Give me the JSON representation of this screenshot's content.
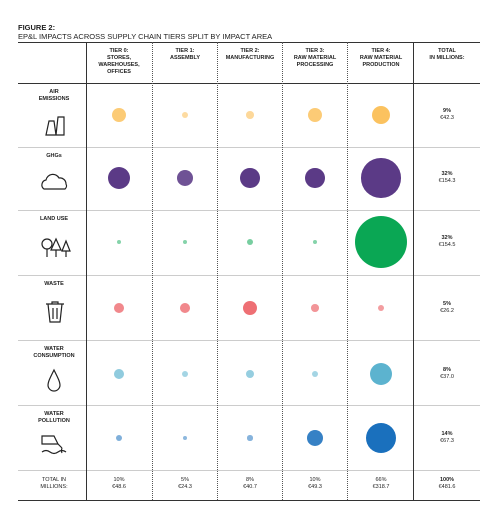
{
  "chart_data": {
    "type": "bubble-matrix",
    "title_label": "FIGURE 2:",
    "title": "EP&L IMPACTS ACROSS SUPPLY CHAIN TIERS SPLIT BY IMPACT AREA",
    "categories": [
      "TIER 0:\nSTORES, WAREHOUSES,\nOFFICES",
      "TIER 1:\nASSEMBLY",
      "TIER 2:\nMANUFACTURING",
      "TIER 3:\nRAW MATERIAL\nPROCESSING",
      "TIER 4:\nRAW MATERIAL\nPRODUCTION"
    ],
    "total_header": "TOTAL\nIN MILLIONS:",
    "series": [
      {
        "name": "AIR\nEMISSIONS",
        "color": "#fbbf57",
        "values": [
          10,
          2,
          3,
          10,
          17
        ]
      },
      {
        "name": "GHGs",
        "color": "#5b3a86",
        "values": [
          25,
          13,
          20,
          20,
          80
        ]
      },
      {
        "name": "LAND USE",
        "color": "#0aa754",
        "values": [
          1,
          1,
          2,
          1,
          145
        ]
      },
      {
        "name": "WASTE",
        "color": "#ea4f55",
        "values": [
          5,
          5,
          10,
          3,
          2
        ]
      },
      {
        "name": "WATER\nCONSUMPTION",
        "color": "#5cb3cf",
        "values": [
          5,
          2,
          4,
          2,
          26
        ]
      },
      {
        "name": "WATER\nPOLLUTION",
        "color": "#1a70bd",
        "values": [
          2,
          1,
          1.5,
          13,
          49
        ]
      }
    ],
    "row_totals": {
      "shares": [
        9,
        32,
        32,
        5,
        8,
        14
      ],
      "share_labels": [
        "9%",
        "32%",
        "32%",
        "5%",
        "8%",
        "14%"
      ],
      "values": [
        42.3,
        154.3,
        154.5,
        26.2,
        37.0,
        67.3
      ],
      "value_labels": [
        "€42.3",
        "€154.3",
        "€154.5",
        "€26.2",
        "€37.0",
        "€67.3"
      ]
    },
    "column_totals_label": "TOTAL IN\nMILLIONS:",
    "column_totals": {
      "shares": [
        10,
        5,
        8,
        10,
        66
      ],
      "share_labels": [
        "10%",
        "5%",
        "8%",
        "10%",
        "66%"
      ],
      "values": [
        48.6,
        24.3,
        40.7,
        49.3,
        318.7
      ],
      "value_labels": [
        "€48.6",
        "€24.3",
        "€40.7",
        "€49.3",
        "€318.7"
      ]
    },
    "grand_total": {
      "share": 100,
      "share_label": "100%",
      "value": 481.6,
      "value_label": "€481.6"
    }
  }
}
